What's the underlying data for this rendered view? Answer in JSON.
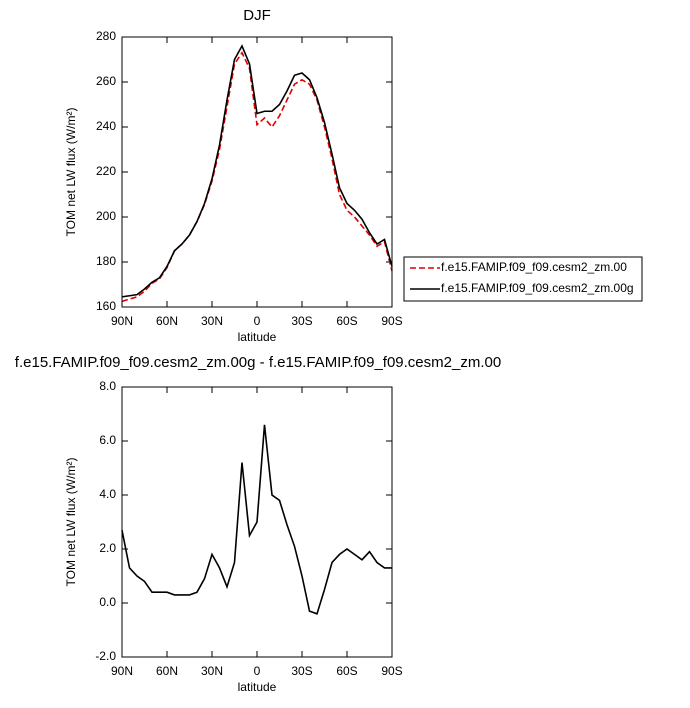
{
  "chart_data": [
    {
      "type": "line",
      "title": "DJF",
      "xlabel": "latitude",
      "ylabel": "TOM net LW flux (W/m²)",
      "x": [
        90,
        85,
        80,
        75,
        70,
        65,
        60,
        55,
        50,
        45,
        40,
        35,
        30,
        25,
        20,
        15,
        10,
        5,
        0,
        -5,
        -10,
        -15,
        -20,
        -25,
        -30,
        -35,
        -40,
        -45,
        -50,
        -55,
        -60,
        -65,
        -70,
        -75,
        -80,
        -85,
        -90
      ],
      "series": [
        {
          "name": "f.e15.FAMIP.f09_f09.cesm2_zm.00",
          "color": "#e00000",
          "line_style": "dashed",
          "values": [
            162.5,
            163.5,
            164.5,
            167,
            170.5,
            172.5,
            177.5,
            185,
            188,
            192,
            198,
            205.5,
            216,
            230,
            249,
            268,
            273,
            266,
            241,
            244,
            240,
            245,
            252,
            259,
            261,
            259,
            252,
            240,
            226,
            210,
            203,
            200,
            196,
            192,
            187,
            189,
            176
          ]
        },
        {
          "name": "f.e15.FAMIP.f09_f09.cesm2_zm.00g",
          "color": "#000000",
          "line_style": "solid",
          "values": [
            164.5,
            165,
            165.5,
            168,
            171,
            173,
            178,
            185,
            188,
            192,
            198,
            206,
            217,
            232,
            252,
            270,
            276,
            268,
            246,
            247,
            247,
            250,
            256,
            263,
            264,
            261,
            253,
            242,
            228,
            213,
            206,
            203,
            199,
            193,
            188,
            190,
            178
          ]
        }
      ],
      "xlim": [
        90,
        -90
      ],
      "xticks": [
        {
          "value": 90,
          "label": "90N"
        },
        {
          "value": 60,
          "label": "60N"
        },
        {
          "value": 30,
          "label": "30N"
        },
        0,
        {
          "value": -30,
          "label": "30S"
        },
        {
          "value": -60,
          "label": "60S"
        },
        {
          "value": -90,
          "label": "90S"
        }
      ],
      "ylim": [
        160,
        280
      ],
      "yticks": [
        160,
        180,
        200,
        220,
        240,
        260,
        280
      ],
      "legend": "right"
    },
    {
      "type": "line",
      "title": "f.e15.FAMIP.f09_f09.cesm2_zm.00g - f.e15.FAMIP.f09_f09.cesm2_zm.00",
      "xlabel": "latitude",
      "ylabel": "TOM net LW flux (W/m²)",
      "x": [
        90,
        85,
        80,
        75,
        70,
        65,
        60,
        55,
        50,
        45,
        40,
        35,
        30,
        25,
        20,
        15,
        10,
        5,
        0,
        -5,
        -10,
        -15,
        -20,
        -25,
        -30,
        -35,
        -40,
        -45,
        -50,
        -55,
        -60,
        -65,
        -70,
        -75,
        -80,
        -85,
        -90
      ],
      "series": [
        {
          "color": "#000000",
          "line_style": "solid",
          "values": [
            2.7,
            1.3,
            1.0,
            0.8,
            0.4,
            0.4,
            0.4,
            0.3,
            0.3,
            0.3,
            0.4,
            0.9,
            1.8,
            1.3,
            0.6,
            1.5,
            5.2,
            2.5,
            3.0,
            6.6,
            4.0,
            3.8,
            2.9,
            2.1,
            1.0,
            -0.3,
            -0.4,
            0.5,
            1.5,
            1.8,
            2.0,
            1.8,
            1.6,
            1.9,
            1.5,
            1.3,
            1.3
          ]
        }
      ],
      "xlim": [
        90,
        -90
      ],
      "xticks": [
        {
          "value": 90,
          "label": "90N"
        },
        {
          "value": 60,
          "label": "60N"
        },
        {
          "value": 30,
          "label": "30N"
        },
        0,
        {
          "value": -30,
          "label": "30S"
        },
        {
          "value": -60,
          "label": "60S"
        },
        {
          "value": -90,
          "label": "90S"
        }
      ],
      "ylim": [
        -2,
        8
      ],
      "yticks": [
        {
          "value": -2,
          "label": "-2.0"
        },
        {
          "value": 0,
          "label": "0.0"
        },
        {
          "value": 2,
          "label": "2.0"
        },
        {
          "value": 4,
          "label": "4.0"
        },
        {
          "value": 6,
          "label": "6.0"
        },
        {
          "value": 8,
          "label": "8.0"
        }
      ]
    }
  ]
}
